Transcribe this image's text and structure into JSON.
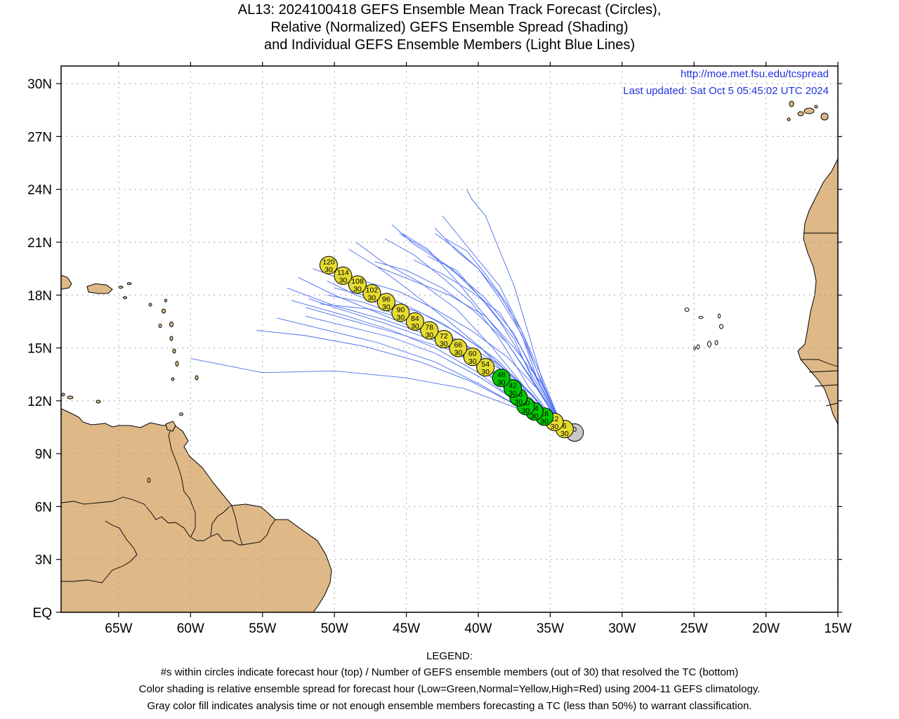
{
  "title": {
    "line1": "AL13: 2024100418 GEFS Ensemble Mean Track Forecast (Circles),",
    "line2": "Relative (Normalized) GEFS Ensemble Spread (Shading)",
    "line3": "and Individual GEFS Ensemble Members (Light Blue Lines)"
  },
  "credits": {
    "url": "http://moe.met.fsu.edu/tcspread",
    "updated": "Last updated: Sat Oct 5 05:45:02 UTC 2024"
  },
  "colors": {
    "land": "#deb887",
    "ocean": "#ffffff",
    "member_line": "#4a6cf0",
    "credit_text": "#2233dd",
    "low_spread": "#00c800",
    "normal_spread": "#e6dc32",
    "gray_fill": "#c8c8c8"
  },
  "legend": {
    "title": "LEGEND:",
    "line1": "#s within circles indicate forecast hour (top) / Number of GEFS ensemble members (out of 30) that resolved the TC (bottom)",
    "line2": "Color shading is relative ensemble spread for forecast hour (Low=Green,Normal=Yellow,High=Red) using 2004-11 GEFS climatology.",
    "line3": "Gray color fill indicates analysis time or not enough ensemble members forecasting a TC (less than 50%) to warrant classification."
  },
  "chart_data": {
    "type": "scatter",
    "xlim": [
      -69,
      -15
    ],
    "ylim": [
      0,
      31
    ],
    "grid": true,
    "x_ticks": [
      {
        "value": -65,
        "label": "65W"
      },
      {
        "value": -60,
        "label": "60W"
      },
      {
        "value": -55,
        "label": "55W"
      },
      {
        "value": -50,
        "label": "50W"
      },
      {
        "value": -45,
        "label": "45W"
      },
      {
        "value": -40,
        "label": "40W"
      },
      {
        "value": -35,
        "label": "35W"
      },
      {
        "value": -30,
        "label": "30W"
      },
      {
        "value": -25,
        "label": "25W"
      },
      {
        "value": -20,
        "label": "20W"
      },
      {
        "value": -15,
        "label": "15W"
      }
    ],
    "y_ticks": [
      {
        "value": 0,
        "label": "EQ"
      },
      {
        "value": 3,
        "label": "3N"
      },
      {
        "value": 6,
        "label": "6N"
      },
      {
        "value": 9,
        "label": "9N"
      },
      {
        "value": 12,
        "label": "12N"
      },
      {
        "value": 15,
        "label": "15N"
      },
      {
        "value": 18,
        "label": "18N"
      },
      {
        "value": 21,
        "label": "21N"
      },
      {
        "value": 24,
        "label": "24N"
      },
      {
        "value": 27,
        "label": "27N"
      },
      {
        "value": 30,
        "label": "30N"
      }
    ],
    "mean_track": [
      {
        "hour": "0",
        "members": "",
        "lon": -33.3,
        "lat": 10.2,
        "spread": "gray"
      },
      {
        "hour": "6",
        "members": "30",
        "lon": -34.0,
        "lat": 10.4,
        "spread": "normal"
      },
      {
        "hour": "12",
        "members": "30",
        "lon": -34.7,
        "lat": 10.8,
        "spread": "normal"
      },
      {
        "hour": "18",
        "members": "30",
        "lon": -35.4,
        "lat": 11.1,
        "spread": "low"
      },
      {
        "hour": "24",
        "members": "30",
        "lon": -36.1,
        "lat": 11.4,
        "spread": "low"
      },
      {
        "hour": "30",
        "members": "30",
        "lon": -36.7,
        "lat": 11.7,
        "spread": "low"
      },
      {
        "hour": "36",
        "members": "30",
        "lon": -37.2,
        "lat": 12.2,
        "spread": "low"
      },
      {
        "hour": "42",
        "members": "30",
        "lon": -37.6,
        "lat": 12.7,
        "spread": "low"
      },
      {
        "hour": "48",
        "members": "30",
        "lon": -38.4,
        "lat": 13.3,
        "spread": "low"
      },
      {
        "hour": "54",
        "members": "30",
        "lon": -39.5,
        "lat": 13.9,
        "spread": "normal"
      },
      {
        "hour": "60",
        "members": "30",
        "lon": -40.4,
        "lat": 14.5,
        "spread": "normal"
      },
      {
        "hour": "66",
        "members": "30",
        "lon": -41.4,
        "lat": 15.0,
        "spread": "normal"
      },
      {
        "hour": "72",
        "members": "30",
        "lon": -42.4,
        "lat": 15.5,
        "spread": "normal"
      },
      {
        "hour": "78",
        "members": "30",
        "lon": -43.4,
        "lat": 16.0,
        "spread": "normal"
      },
      {
        "hour": "84",
        "members": "30",
        "lon": -44.4,
        "lat": 16.5,
        "spread": "normal"
      },
      {
        "hour": "90",
        "members": "30",
        "lon": -45.4,
        "lat": 17.0,
        "spread": "normal"
      },
      {
        "hour": "96",
        "members": "30",
        "lon": -46.4,
        "lat": 17.6,
        "spread": "normal"
      },
      {
        "hour": "102",
        "members": "30",
        "lon": -47.4,
        "lat": 18.1,
        "spread": "normal"
      },
      {
        "hour": "108",
        "members": "30",
        "lon": -48.4,
        "lat": 18.6,
        "spread": "normal"
      },
      {
        "hour": "114",
        "members": "30",
        "lon": -49.4,
        "lat": 19.1,
        "spread": "normal"
      },
      {
        "hour": "120",
        "members": "30",
        "lon": -50.4,
        "lat": 19.7,
        "spread": "normal"
      }
    ],
    "member_tracks": [
      [
        [
          -34.0,
          10.2
        ],
        [
          -37,
          11.5
        ],
        [
          -41,
          12.7
        ],
        [
          -45,
          13.3
        ],
        [
          -50,
          13.7
        ],
        [
          -55,
          13.6
        ],
        [
          -60,
          14.4
        ]
      ],
      [
        [
          -34.0,
          10.2
        ],
        [
          -37,
          11.6
        ],
        [
          -40.5,
          13.1
        ],
        [
          -44,
          14.2
        ],
        [
          -48,
          15.1
        ],
        [
          -52,
          15.7
        ],
        [
          -55.4,
          16.0
        ]
      ],
      [
        [
          -34.0,
          10.2
        ],
        [
          -37,
          11.8
        ],
        [
          -40,
          13.4
        ],
        [
          -43,
          14.7
        ],
        [
          -46,
          15.6
        ],
        [
          -49,
          16.2
        ],
        [
          -52,
          16.8
        ]
      ],
      [
        [
          -34.0,
          10.2
        ],
        [
          -37.2,
          11.9
        ],
        [
          -40,
          13.6
        ],
        [
          -43,
          15.0
        ],
        [
          -46,
          16.0
        ],
        [
          -49.5,
          16.9
        ],
        [
          -53,
          17.7
        ]
      ],
      [
        [
          -34.0,
          10.2
        ],
        [
          -36.8,
          11.5
        ],
        [
          -39.8,
          12.9
        ],
        [
          -43,
          14.2
        ],
        [
          -47,
          15.3
        ],
        [
          -51.5,
          16.2
        ],
        [
          -54,
          16.7
        ]
      ],
      [
        [
          -34.0,
          10.2
        ],
        [
          -37,
          12.0
        ],
        [
          -40,
          14.0
        ],
        [
          -43,
          15.6
        ],
        [
          -46.5,
          16.6
        ],
        [
          -50,
          17.4
        ],
        [
          -53.3,
          18.4
        ]
      ],
      [
        [
          -34.0,
          10.2
        ],
        [
          -37.5,
          12.3
        ],
        [
          -41,
          14.5
        ],
        [
          -44,
          16.0
        ],
        [
          -47,
          17.0
        ],
        [
          -50,
          18.0
        ],
        [
          -52.5,
          19.0
        ]
      ],
      [
        [
          -34.0,
          10.2
        ],
        [
          -37.5,
          12.4
        ],
        [
          -40.5,
          14.7
        ],
        [
          -43.5,
          16.3
        ],
        [
          -46.5,
          17.4
        ],
        [
          -48.5,
          18.0
        ],
        [
          -50.5,
          18.8
        ]
      ],
      [
        [
          -34.0,
          10.2
        ],
        [
          -37,
          12.5
        ],
        [
          -39.8,
          15.0
        ],
        [
          -42.5,
          16.8
        ],
        [
          -45,
          18.4
        ],
        [
          -47,
          19.6
        ],
        [
          -49,
          20.6
        ]
      ],
      [
        [
          -34.0,
          10.2
        ],
        [
          -36.5,
          12.5
        ],
        [
          -39,
          15.0
        ],
        [
          -41.5,
          17.2
        ],
        [
          -44,
          18.7
        ],
        [
          -46.5,
          19.8
        ],
        [
          -48.5,
          21.0
        ]
      ],
      [
        [
          -34.0,
          10.2
        ],
        [
          -36.5,
          12.8
        ],
        [
          -38.5,
          15.5
        ],
        [
          -40.5,
          17.6
        ],
        [
          -42.5,
          19.0
        ],
        [
          -44.5,
          20.3
        ],
        [
          -46.5,
          21.2
        ]
      ],
      [
        [
          -34.0,
          10.2
        ],
        [
          -36,
          12.8
        ],
        [
          -37.5,
          15.5
        ],
        [
          -39.5,
          17.6
        ],
        [
          -41.5,
          19.2
        ],
        [
          -43.5,
          20.5
        ],
        [
          -45.5,
          21.5
        ]
      ],
      [
        [
          -34.0,
          10.2
        ],
        [
          -35.8,
          13.0
        ],
        [
          -37,
          15.8
        ],
        [
          -38.5,
          17.8
        ],
        [
          -40,
          19.5
        ],
        [
          -41.5,
          20.6
        ],
        [
          -43,
          21.5
        ]
      ],
      [
        [
          -34.0,
          10.2
        ],
        [
          -36,
          12.9
        ],
        [
          -38,
          15.3
        ],
        [
          -40,
          17.3
        ],
        [
          -41.5,
          18.8
        ],
        [
          -43.5,
          20.6
        ],
        [
          -45.3,
          21.5
        ]
      ],
      [
        [
          -34.0,
          10.2
        ],
        [
          -35.8,
          12.8
        ],
        [
          -37.2,
          14.8
        ],
        [
          -38.5,
          16.5
        ],
        [
          -40,
          18.0
        ],
        [
          -41.5,
          19.4
        ],
        [
          -43.5,
          20.2
        ]
      ],
      [
        [
          -34.0,
          10.2
        ],
        [
          -35.6,
          12.8
        ],
        [
          -37,
          15.0
        ],
        [
          -38.5,
          17.0
        ],
        [
          -40.5,
          18.2
        ],
        [
          -42.5,
          19.2
        ],
        [
          -44.5,
          20.0
        ]
      ],
      [
        [
          -34.0,
          10.2
        ],
        [
          -35.5,
          12.9
        ],
        [
          -36.7,
          15.2
        ],
        [
          -38,
          17.5
        ],
        [
          -39.5,
          19.2
        ],
        [
          -40.8,
          20.5
        ],
        [
          -42.3,
          21.2
        ]
      ],
      [
        [
          -34.0,
          10.2
        ],
        [
          -35.6,
          13.0
        ],
        [
          -37,
          16.0
        ],
        [
          -38.5,
          18.5
        ],
        [
          -40,
          20.0
        ],
        [
          -41,
          21.0
        ],
        [
          -42.5,
          22.5
        ]
      ],
      [
        [
          -34.0,
          10.2
        ],
        [
          -35.8,
          13.0
        ],
        [
          -37.5,
          15.8
        ],
        [
          -39.5,
          17.8
        ],
        [
          -42,
          19.6
        ],
        [
          -44.5,
          20.9
        ],
        [
          -46,
          22.0
        ]
      ],
      [
        [
          -34.0,
          10.2
        ],
        [
          -35.5,
          13.2
        ],
        [
          -37,
          16.0
        ],
        [
          -38.5,
          18.0
        ],
        [
          -40,
          19.5
        ],
        [
          -41.5,
          20.5
        ],
        [
          -43,
          21.8
        ]
      ],
      [
        [
          -34.0,
          10.2
        ],
        [
          -35.6,
          13.0
        ],
        [
          -37.5,
          15.0
        ],
        [
          -39.5,
          16.8
        ],
        [
          -42,
          18.0
        ],
        [
          -44.5,
          18.8
        ],
        [
          -47,
          19.6
        ]
      ],
      [
        [
          -34.0,
          10.2
        ],
        [
          -35.8,
          12.6
        ],
        [
          -38,
          14.5
        ],
        [
          -40.5,
          16.0
        ],
        [
          -43,
          17.2
        ],
        [
          -45.5,
          18.2
        ],
        [
          -48,
          18.8
        ]
      ],
      [
        [
          -34.0,
          10.2
        ],
        [
          -35.5,
          13.0
        ],
        [
          -36.5,
          15.8
        ],
        [
          -37.5,
          18.5
        ],
        [
          -38.5,
          20.5
        ],
        [
          -39.5,
          22.5
        ],
        [
          -40.5,
          23.5
        ],
        [
          -40.8,
          24.0
        ]
      ],
      [
        [
          -34.0,
          10.2
        ],
        [
          -36.2,
          12.0
        ],
        [
          -39,
          13.6
        ],
        [
          -42,
          14.9
        ],
        [
          -45.5,
          15.8
        ],
        [
          -49,
          16.6
        ],
        [
          -52,
          17.3
        ]
      ],
      [
        [
          -34.0,
          10.2
        ],
        [
          -36.4,
          12.2
        ],
        [
          -39.5,
          14.0
        ],
        [
          -43,
          15.4
        ],
        [
          -46.5,
          16.4
        ],
        [
          -50,
          17.3
        ],
        [
          -51.8,
          17.8
        ]
      ],
      [
        [
          -34.0,
          10.2
        ],
        [
          -36.6,
          12.6
        ],
        [
          -39.5,
          14.8
        ],
        [
          -42.5,
          16.4
        ],
        [
          -45.5,
          17.6
        ],
        [
          -48.5,
          18.6
        ],
        [
          -51.5,
          19.5
        ]
      ],
      [
        [
          -34.0,
          10.2
        ],
        [
          -36.3,
          12.4
        ],
        [
          -38.8,
          14.4
        ],
        [
          -41.5,
          15.9
        ],
        [
          -44,
          17.0
        ],
        [
          -47,
          17.8
        ],
        [
          -50,
          18.4
        ]
      ],
      [
        [
          -34.0,
          10.2
        ],
        [
          -35.9,
          12.7
        ],
        [
          -38,
          15.3
        ],
        [
          -40.3,
          17.1
        ],
        [
          -42.5,
          18.4
        ],
        [
          -45,
          19.4
        ],
        [
          -47.2,
          19.9
        ]
      ],
      [
        [
          -34.0,
          10.2
        ],
        [
          -36.1,
          12.2
        ],
        [
          -38.5,
          13.8
        ],
        [
          -41,
          15.2
        ],
        [
          -44,
          16.4
        ],
        [
          -47.5,
          17.2
        ],
        [
          -51,
          17.5
        ]
      ],
      [
        [
          -34.0,
          10.2
        ],
        [
          -36.2,
          12.3
        ],
        [
          -38.8,
          14.2
        ],
        [
          -41.8,
          15.6
        ],
        [
          -45,
          16.7
        ],
        [
          -48,
          17.6
        ],
        [
          -50.5,
          18.0
        ]
      ]
    ]
  }
}
